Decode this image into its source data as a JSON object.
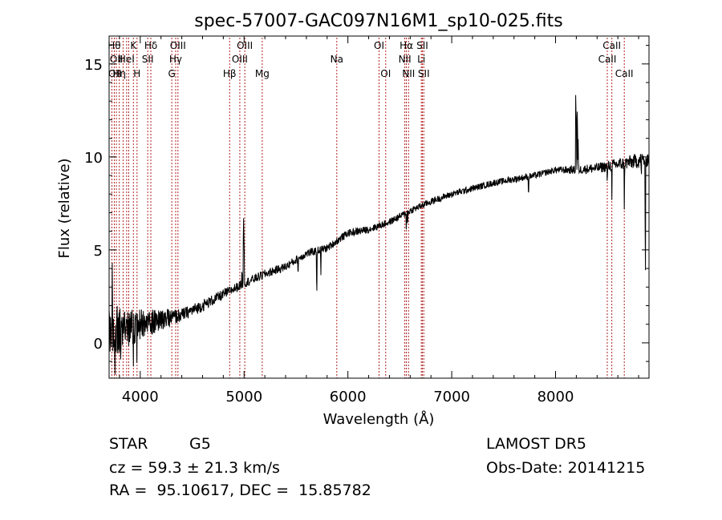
{
  "chart_data": {
    "type": "line",
    "title": "spec-57007-GAC097N16M1_sp10-025.fits",
    "xlabel": "Wavelength (Å)",
    "ylabel": "Flux (relative)",
    "xlim": [
      3700,
      8900
    ],
    "ylim": [
      -1.9,
      16.5
    ],
    "x_ticks": [
      4000,
      5000,
      6000,
      7000,
      8000
    ],
    "y_ticks": [
      0,
      5,
      10,
      15
    ],
    "grid": false,
    "line_color": "#000000",
    "marker_line_color": "#b22222",
    "continuum": [
      [
        3700,
        0.6
      ],
      [
        3800,
        0.7
      ],
      [
        3900,
        0.8
      ],
      [
        4000,
        1.0
      ],
      [
        4200,
        1.2
      ],
      [
        4400,
        1.5
      ],
      [
        4600,
        2.0
      ],
      [
        4800,
        2.6
      ],
      [
        5000,
        3.2
      ],
      [
        5200,
        3.7
      ],
      [
        5400,
        4.1
      ],
      [
        5600,
        4.8
      ],
      [
        5800,
        5.1
      ],
      [
        6000,
        5.9
      ],
      [
        6200,
        6.1
      ],
      [
        6400,
        6.5
      ],
      [
        6600,
        7.1
      ],
      [
        6800,
        7.6
      ],
      [
        7000,
        8.0
      ],
      [
        7200,
        8.3
      ],
      [
        7400,
        8.6
      ],
      [
        7600,
        8.8
      ],
      [
        7800,
        9.0
      ],
      [
        8000,
        9.3
      ],
      [
        8200,
        9.3
      ],
      [
        8400,
        9.4
      ],
      [
        8600,
        9.6
      ],
      [
        8800,
        9.8
      ],
      [
        8900,
        9.9
      ]
    ],
    "noise_amplitude": [
      [
        3700,
        1.6
      ],
      [
        3900,
        1.0
      ],
      [
        4100,
        0.7
      ],
      [
        4400,
        0.35
      ],
      [
        5000,
        0.25
      ],
      [
        6000,
        0.2
      ],
      [
        7000,
        0.18
      ],
      [
        8000,
        0.18
      ],
      [
        8500,
        0.3
      ],
      [
        8900,
        0.45
      ]
    ],
    "features": [
      {
        "x": 3730,
        "dy": 2.2
      },
      {
        "x": 3755,
        "dy": -2.4
      },
      {
        "x": 3810,
        "dy": -2.0
      },
      {
        "x": 3933,
        "dy": -1.6
      },
      {
        "x": 3968,
        "dy": -1.7
      },
      {
        "x": 4980,
        "dy": 1.0
      },
      {
        "x": 4995,
        "dy": 5.0
      },
      {
        "x": 5000,
        "dy": 3.5
      },
      {
        "x": 5520,
        "dy": -1.0
      },
      {
        "x": 5700,
        "dy": -2.9
      },
      {
        "x": 5740,
        "dy": -1.2
      },
      {
        "x": 6563,
        "dy": -1.0
      },
      {
        "x": 6575,
        "dy": -0.8
      },
      {
        "x": 7740,
        "dy": -1.3
      },
      {
        "x": 8195,
        "dy": 5.2
      },
      {
        "x": 8200,
        "dy": 2.8
      },
      {
        "x": 8210,
        "dy": 4.0
      },
      {
        "x": 8218,
        "dy": 1.5
      },
      {
        "x": 8498,
        "dy": -1.3
      },
      {
        "x": 8542,
        "dy": -1.6
      },
      {
        "x": 8662,
        "dy": -2.2
      },
      {
        "x": 8825,
        "dy": -0.9
      },
      {
        "x": 8865,
        "dy": -8.5
      }
    ],
    "line_markers": [
      {
        "x": 3727,
        "label": "OII",
        "row": 2,
        "anchor": "end"
      },
      {
        "x": 3750,
        "label": "Hθ",
        "row": 0,
        "anchor": "middle"
      },
      {
        "x": 3770,
        "label": "OII",
        "row": 1,
        "anchor": "middle"
      },
      {
        "x": 3798,
        "label": "Hη",
        "row": 2,
        "anchor": "middle"
      },
      {
        "x": 3835,
        "label": "",
        "row": -1,
        "anchor": "middle"
      },
      {
        "x": 3869,
        "label": "HeI",
        "row": 1,
        "anchor": "middle"
      },
      {
        "x": 3889,
        "label": "",
        "row": -1,
        "anchor": "middle"
      },
      {
        "x": 3934,
        "label": "K",
        "row": 0,
        "anchor": "middle"
      },
      {
        "x": 3969,
        "label": "H",
        "row": 2,
        "anchor": "middle"
      },
      {
        "x": 4072,
        "label": "SII",
        "row": 1,
        "anchor": "middle"
      },
      {
        "x": 4102,
        "label": "Hδ",
        "row": 0,
        "anchor": "middle"
      },
      {
        "x": 4304,
        "label": "G",
        "row": 2,
        "anchor": "middle"
      },
      {
        "x": 4341,
        "label": "Hγ",
        "row": 1,
        "anchor": "middle"
      },
      {
        "x": 4363,
        "label": "OIII",
        "row": 0,
        "anchor": "middle"
      },
      {
        "x": 4861,
        "label": "Hβ",
        "row": 2,
        "anchor": "middle"
      },
      {
        "x": 4959,
        "label": "OIII",
        "row": 1,
        "anchor": "middle"
      },
      {
        "x": 5007,
        "label": "OIII",
        "row": 0,
        "anchor": "middle"
      },
      {
        "x": 5175,
        "label": "Mg",
        "row": 2,
        "anchor": "middle"
      },
      {
        "x": 5893,
        "label": "Na",
        "row": 1,
        "anchor": "middle"
      },
      {
        "x": 6300,
        "label": "OI",
        "row": 0,
        "anchor": "middle"
      },
      {
        "x": 6364,
        "label": "OI",
        "row": 2,
        "anchor": "middle"
      },
      {
        "x": 6548,
        "label": "NII",
        "row": 1,
        "anchor": "middle"
      },
      {
        "x": 6563,
        "label": "Hα",
        "row": 0,
        "anchor": "middle"
      },
      {
        "x": 6584,
        "label": "NII",
        "row": 2,
        "anchor": "middle"
      },
      {
        "x": 6707,
        "label": "Li",
        "row": 1,
        "anchor": "middle"
      },
      {
        "x": 6717,
        "label": "SII",
        "row": 0,
        "anchor": "middle"
      },
      {
        "x": 6731,
        "label": "SII",
        "row": 2,
        "anchor": "middle"
      },
      {
        "x": 8498,
        "label": "CaII",
        "row": 1,
        "anchor": "middle"
      },
      {
        "x": 8542,
        "label": "CaII",
        "row": 0,
        "anchor": "middle"
      },
      {
        "x": 8662,
        "label": "CaII",
        "row": 2,
        "anchor": "middle"
      }
    ]
  },
  "info": {
    "class": "STAR",
    "subclass": "G5",
    "survey": "LAMOST DR5",
    "redshift": "cz = 59.3 ± 21.3 km/s",
    "obs_date": "Obs-Date: 20141215",
    "coords": "RA =  95.10617, DEC =  15.85782"
  }
}
